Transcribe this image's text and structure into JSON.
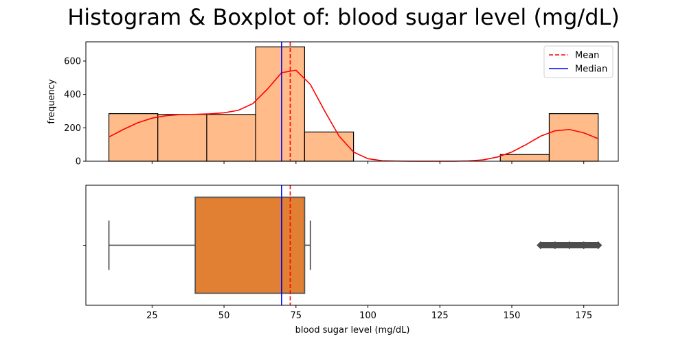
{
  "chart_data": {
    "title": "Histogram & Boxplot of: blood sugar level (mg/dL)",
    "xlabel": "blood sugar level (mg/dL)",
    "xlim": [
      2,
      187
    ],
    "x_ticks": [
      25,
      50,
      75,
      100,
      125,
      150,
      175
    ],
    "colors": {
      "hist_fill": "#ffbb8a",
      "box_fill": "#e17f33",
      "mean": "#ff0000",
      "median": "#0000ff",
      "kde": "#ff0000",
      "whisker": "#555555"
    },
    "mean": 73,
    "median": 70,
    "histogram": {
      "type": "bar",
      "ylabel": "frequency",
      "ylim": [
        0,
        715
      ],
      "y_ticks": [
        0,
        200,
        400,
        600
      ],
      "bins": [
        {
          "x0": 10,
          "x1": 27,
          "count": 285
        },
        {
          "x0": 27,
          "x1": 44,
          "count": 280
        },
        {
          "x0": 44,
          "x1": 61,
          "count": 280
        },
        {
          "x0": 61,
          "x1": 78,
          "count": 685
        },
        {
          "x0": 78,
          "x1": 95,
          "count": 175
        },
        {
          "x0": 95,
          "x1": 112,
          "count": 0
        },
        {
          "x0": 112,
          "x1": 129,
          "count": 0
        },
        {
          "x0": 129,
          "x1": 146,
          "count": 0
        },
        {
          "x0": 146,
          "x1": 163,
          "count": 40
        },
        {
          "x0": 163,
          "x1": 180,
          "count": 285
        }
      ],
      "kde": {
        "x": [
          10,
          15,
          20,
          25,
          30,
          35,
          40,
          45,
          50,
          55,
          60,
          65,
          70,
          75,
          80,
          85,
          90,
          95,
          100,
          105,
          110,
          115,
          120,
          125,
          130,
          135,
          140,
          145,
          150,
          155,
          160,
          165,
          170,
          175,
          180
        ],
        "y": [
          145,
          190,
          230,
          258,
          273,
          279,
          281,
          284,
          290,
          305,
          345,
          430,
          530,
          545,
          460,
          300,
          150,
          55,
          15,
          3,
          1,
          0,
          0,
          0,
          0,
          2,
          8,
          25,
          55,
          100,
          150,
          182,
          190,
          170,
          135
        ]
      },
      "legend": {
        "position": "upper right",
        "entries": [
          {
            "label": "Mean",
            "color": "#ff0000",
            "style": "dashed"
          },
          {
            "label": "Median",
            "color": "#0000ff",
            "style": "solid"
          }
        ]
      }
    },
    "boxplot": {
      "type": "box",
      "whisker_low": 10,
      "q1": 40,
      "median": 70,
      "q3": 78,
      "whisker_high": 80,
      "outliers": [
        160,
        165,
        170,
        175,
        180
      ]
    }
  }
}
